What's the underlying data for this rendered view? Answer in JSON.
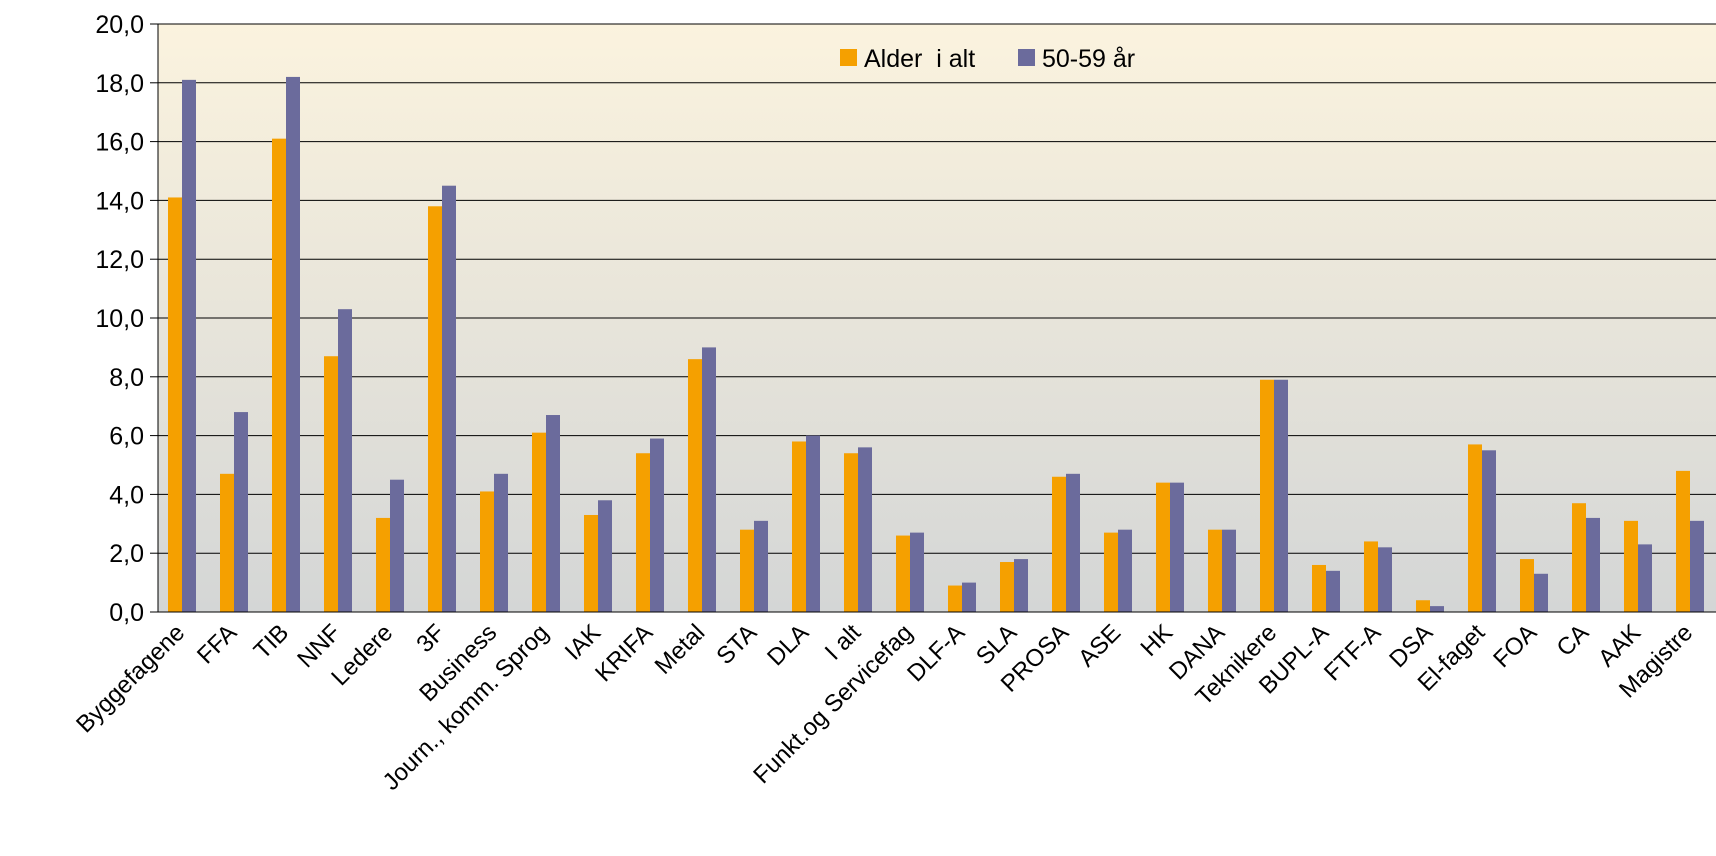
{
  "chart_data": {
    "type": "bar",
    "title": "",
    "xlabel": "",
    "ylabel": "",
    "ylim": [
      0,
      20
    ],
    "ytick_step": 2,
    "ytick_labels": [
      "0,0",
      "2,0",
      "4,0",
      "6,0",
      "8,0",
      "10,0",
      "12,0",
      "14,0",
      "16,0",
      "18,0",
      "20,0"
    ],
    "grid": true,
    "legend_position": "top-center",
    "categories": [
      "Byggefagene",
      "FFA",
      "TIB",
      "NNF",
      "Ledere",
      "3F",
      "Business",
      "Journ., komm. Sprog",
      "IAK",
      "KRIFA",
      "Metal",
      "STA",
      "DLA",
      "I alt",
      "Funkt.og Servicefag",
      "DLF-A",
      "SLA",
      "PROSA",
      "ASE",
      "HK",
      "DANA",
      "Teknikere",
      "BUPL-A",
      "FTF-A",
      "DSA",
      "El-faget",
      "FOA",
      "CA",
      "AAK",
      "Magistre"
    ],
    "series": [
      {
        "name": "Alder  i alt",
        "color": "#F5A000",
        "values": [
          14.1,
          4.7,
          16.1,
          8.7,
          3.2,
          13.8,
          4.1,
          6.1,
          3.3,
          5.4,
          8.6,
          2.8,
          5.8,
          5.4,
          2.6,
          0.9,
          1.7,
          4.6,
          2.7,
          4.4,
          2.8,
          7.9,
          1.6,
          2.4,
          0.4,
          5.7,
          1.8,
          3.7,
          3.1,
          4.8
        ]
      },
      {
        "name": "50-59 år",
        "color": "#6B6B9C",
        "values": [
          18.1,
          6.8,
          18.2,
          10.3,
          4.5,
          14.5,
          4.7,
          6.7,
          3.8,
          5.9,
          9.0,
          3.1,
          6.0,
          5.6,
          2.7,
          1.0,
          1.8,
          4.7,
          2.8,
          4.4,
          2.8,
          7.9,
          1.4,
          2.2,
          0.2,
          5.5,
          1.3,
          3.2,
          2.3,
          3.1
        ]
      }
    ]
  }
}
